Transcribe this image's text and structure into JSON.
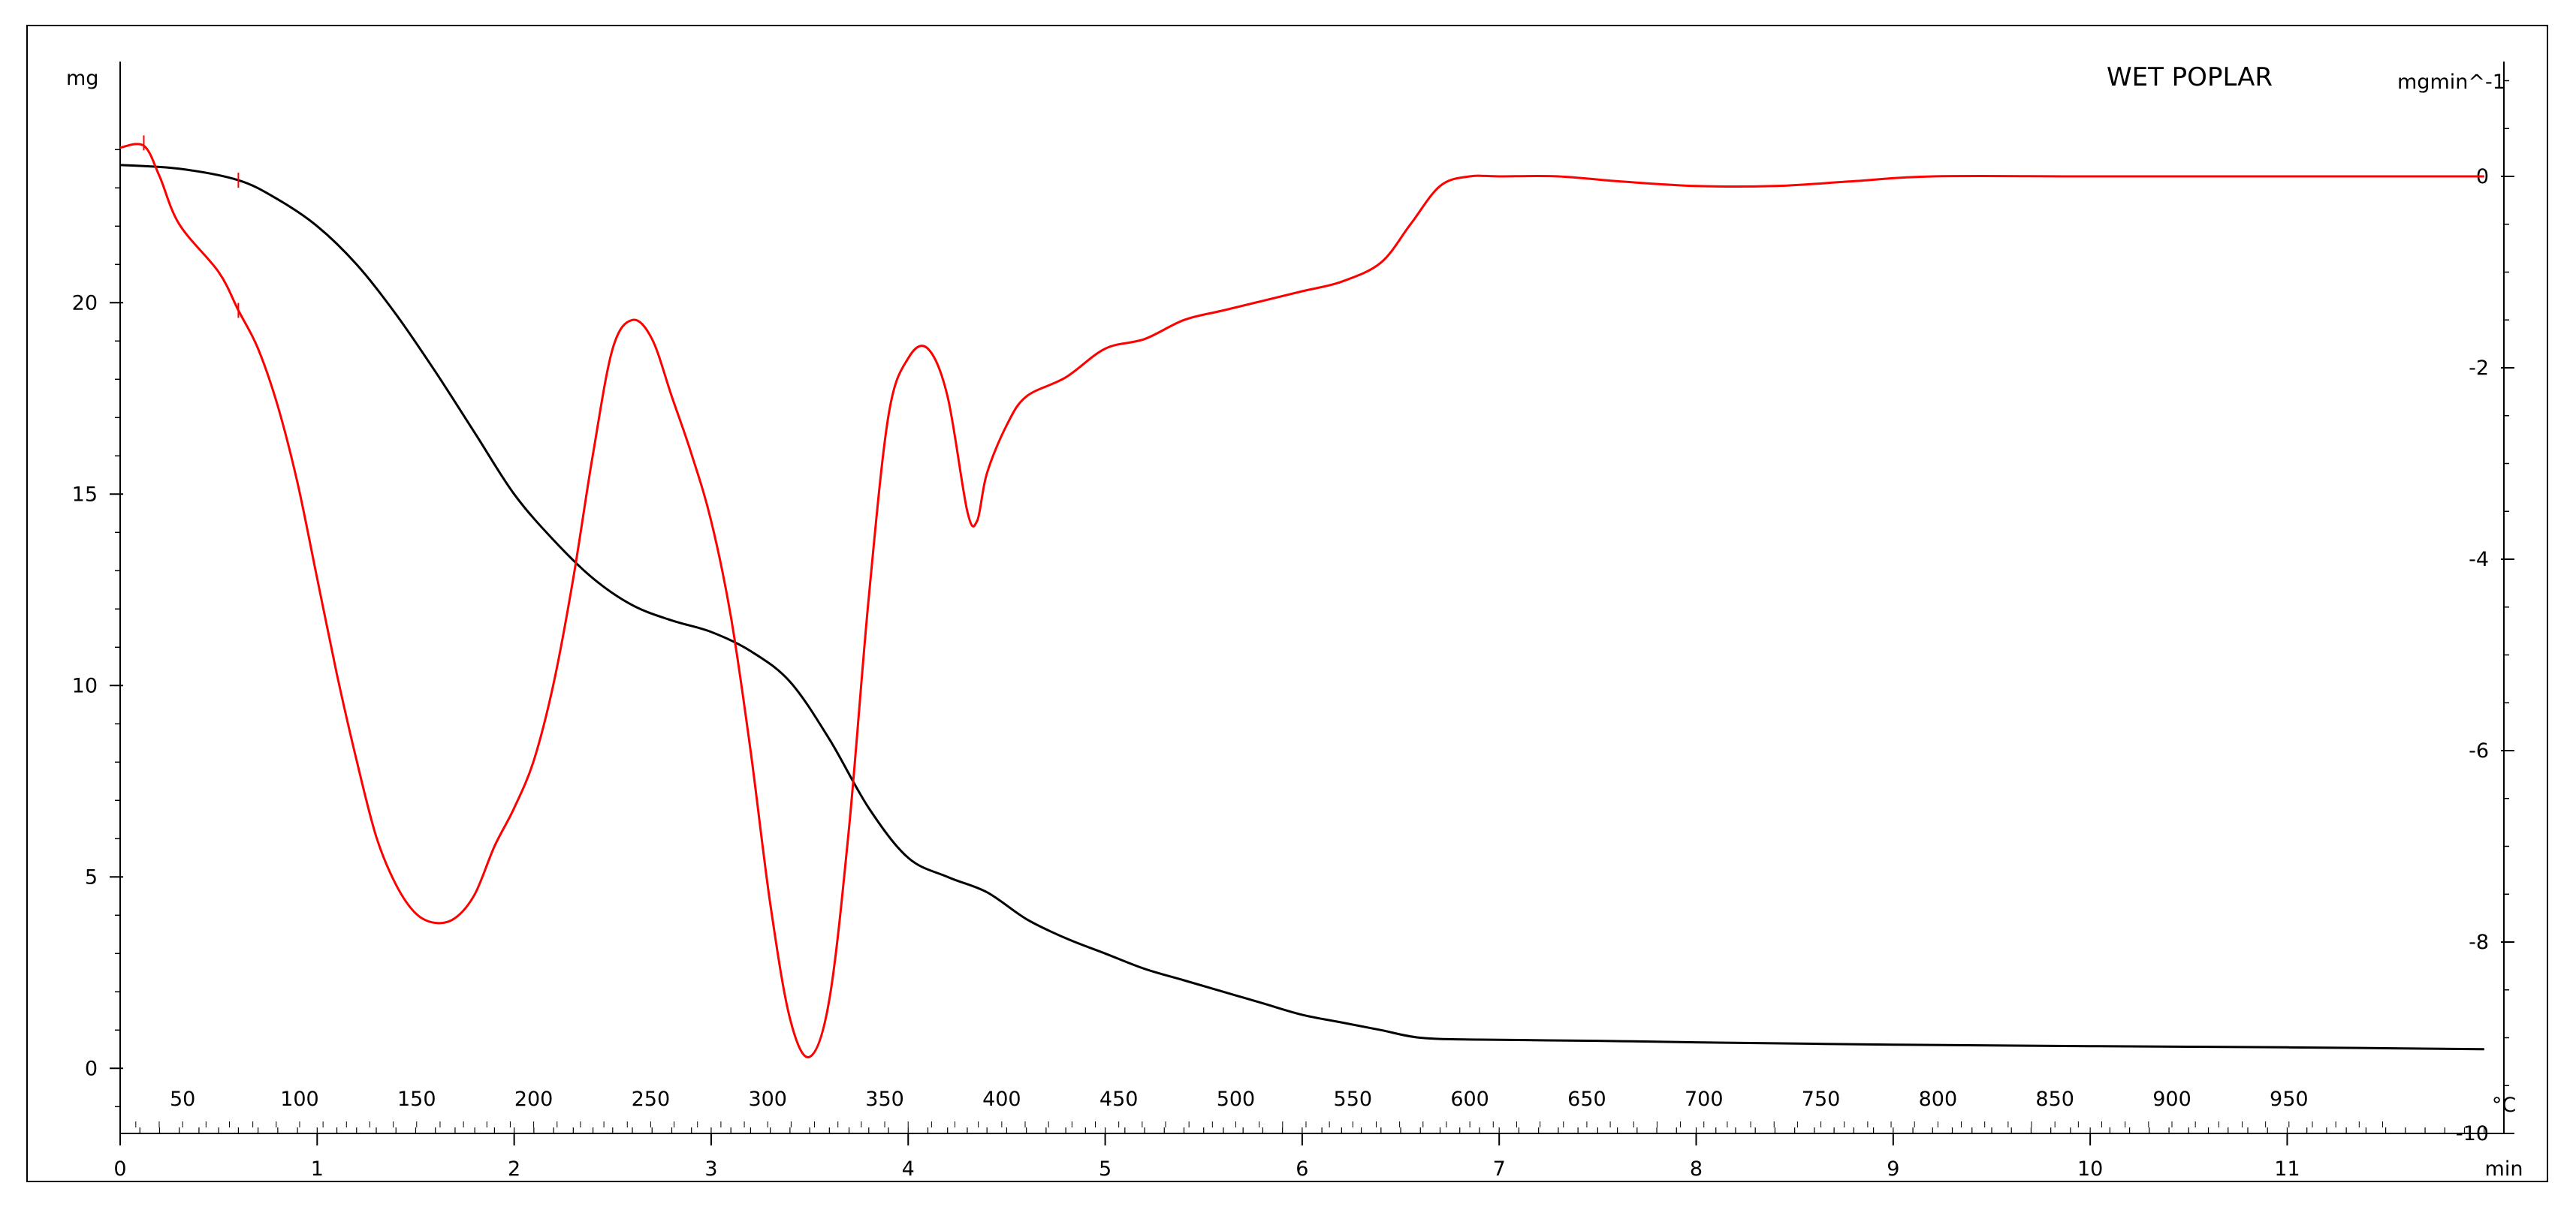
{
  "chart_data": {
    "type": "line",
    "title": "WET POPLAR",
    "left_axis": {
      "unit": "mg",
      "range": [
        -1.7,
        26.3
      ],
      "ticks": [
        0,
        5,
        10,
        15,
        20
      ]
    },
    "right_axis": {
      "unit": "mgmin^-1",
      "range": [
        -10,
        1.2
      ],
      "ticks": [
        0,
        -2,
        -4,
        -6,
        -8,
        -10
      ]
    },
    "time_axis": {
      "unit": "min",
      "range": [
        0,
        12.1
      ],
      "ticks": [
        0,
        1,
        2,
        3,
        4,
        5,
        6,
        7,
        8,
        9,
        10,
        11
      ]
    },
    "temperature_axis": {
      "unit": "°C",
      "ticks": [
        50,
        100,
        150,
        200,
        250,
        300,
        350,
        400,
        450,
        500,
        550,
        600,
        650,
        700,
        750,
        800,
        850,
        900,
        950
      ]
    },
    "series": [
      {
        "axis": "left",
        "color": "#000000",
        "points": [
          [
            0.0,
            23.6
          ],
          [
            0.3,
            23.5
          ],
          [
            0.6,
            23.2
          ],
          [
            0.8,
            22.7
          ],
          [
            1.0,
            22.0
          ],
          [
            1.2,
            21.0
          ],
          [
            1.4,
            19.7
          ],
          [
            1.6,
            18.2
          ],
          [
            1.8,
            16.6
          ],
          [
            2.0,
            15.0
          ],
          [
            2.2,
            13.8
          ],
          [
            2.4,
            12.8
          ],
          [
            2.6,
            12.1
          ],
          [
            2.8,
            11.7
          ],
          [
            3.0,
            11.4
          ],
          [
            3.2,
            10.9
          ],
          [
            3.4,
            10.1
          ],
          [
            3.6,
            8.6
          ],
          [
            3.8,
            6.8
          ],
          [
            4.0,
            5.5
          ],
          [
            4.2,
            5.0
          ],
          [
            4.4,
            4.6
          ],
          [
            4.6,
            3.9
          ],
          [
            4.8,
            3.4
          ],
          [
            5.0,
            3.0
          ],
          [
            5.2,
            2.6
          ],
          [
            5.4,
            2.3
          ],
          [
            5.6,
            2.0
          ],
          [
            5.8,
            1.7
          ],
          [
            6.0,
            1.4
          ],
          [
            6.2,
            1.2
          ],
          [
            6.4,
            1.0
          ],
          [
            6.6,
            0.8
          ],
          [
            6.9,
            0.75
          ],
          [
            7.5,
            0.72
          ],
          [
            8.0,
            0.68
          ],
          [
            9.0,
            0.62
          ],
          [
            10.0,
            0.58
          ],
          [
            11.0,
            0.55
          ],
          [
            12.0,
            0.5
          ]
        ]
      },
      {
        "axis": "right",
        "color": "#ff0000",
        "points": [
          [
            0.0,
            0.3
          ],
          [
            0.12,
            0.32
          ],
          [
            0.2,
            0.0
          ],
          [
            0.3,
            -0.5
          ],
          [
            0.5,
            -1.0
          ],
          [
            0.6,
            -1.4
          ],
          [
            0.7,
            -1.8
          ],
          [
            0.8,
            -2.4
          ],
          [
            0.9,
            -3.2
          ],
          [
            1.0,
            -4.2
          ],
          [
            1.1,
            -5.2
          ],
          [
            1.2,
            -6.1
          ],
          [
            1.3,
            -6.9
          ],
          [
            1.4,
            -7.4
          ],
          [
            1.5,
            -7.7
          ],
          [
            1.6,
            -7.8
          ],
          [
            1.7,
            -7.75
          ],
          [
            1.8,
            -7.5
          ],
          [
            1.9,
            -7.0
          ],
          [
            2.0,
            -6.6
          ],
          [
            2.1,
            -6.1
          ],
          [
            2.2,
            -5.3
          ],
          [
            2.3,
            -4.2
          ],
          [
            2.4,
            -2.9
          ],
          [
            2.5,
            -1.8
          ],
          [
            2.6,
            -1.5
          ],
          [
            2.7,
            -1.7
          ],
          [
            2.8,
            -2.3
          ],
          [
            2.9,
            -2.9
          ],
          [
            3.0,
            -3.6
          ],
          [
            3.1,
            -4.6
          ],
          [
            3.2,
            -6.0
          ],
          [
            3.3,
            -7.6
          ],
          [
            3.4,
            -8.8
          ],
          [
            3.5,
            -9.2
          ],
          [
            3.6,
            -8.6
          ],
          [
            3.7,
            -6.8
          ],
          [
            3.8,
            -4.4
          ],
          [
            3.9,
            -2.5
          ],
          [
            4.0,
            -1.9
          ],
          [
            4.1,
            -1.8
          ],
          [
            4.2,
            -2.3
          ],
          [
            4.3,
            -3.5
          ],
          [
            4.35,
            -3.6
          ],
          [
            4.4,
            -3.1
          ],
          [
            4.5,
            -2.6
          ],
          [
            4.6,
            -2.3
          ],
          [
            4.8,
            -2.1
          ],
          [
            5.0,
            -1.8
          ],
          [
            5.2,
            -1.7
          ],
          [
            5.4,
            -1.5
          ],
          [
            5.6,
            -1.4
          ],
          [
            5.8,
            -1.3
          ],
          [
            6.0,
            -1.2
          ],
          [
            6.2,
            -1.1
          ],
          [
            6.4,
            -0.9
          ],
          [
            6.55,
            -0.5
          ],
          [
            6.7,
            -0.1
          ],
          [
            6.85,
            0.0
          ],
          [
            7.0,
            0.0
          ],
          [
            7.3,
            0.0
          ],
          [
            7.6,
            -0.05
          ],
          [
            8.0,
            -0.1
          ],
          [
            8.4,
            -0.1
          ],
          [
            8.8,
            -0.05
          ],
          [
            9.2,
            0.0
          ],
          [
            10.0,
            0.0
          ],
          [
            11.0,
            0.0
          ],
          [
            12.0,
            0.0
          ]
        ]
      }
    ]
  }
}
